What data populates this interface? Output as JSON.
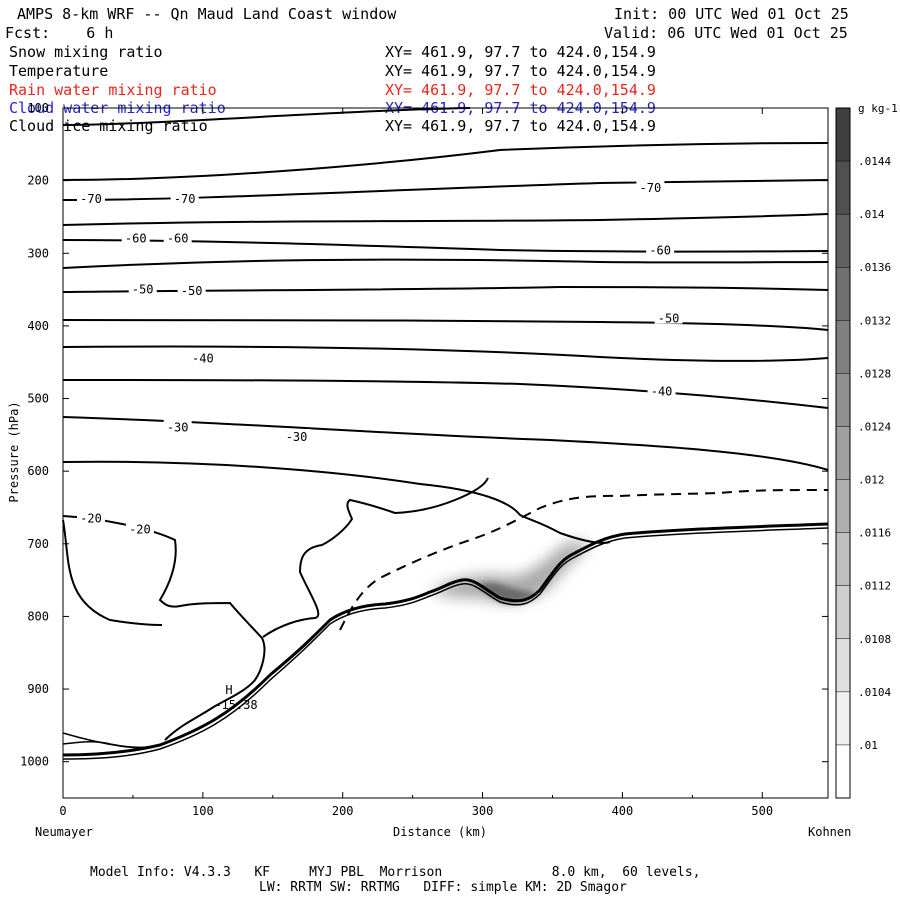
{
  "header": {
    "title": "AMPS 8-km WRF -- Qn Maud Land Coast window",
    "init": "Init: 00 UTC Wed 01 Oct 25",
    "fcst": "Fcst:    6 h",
    "valid": "Valid: 06 UTC Wed 01 Oct 25"
  },
  "fields": [
    {
      "name": "Snow mixing ratio",
      "xy": "XY= 461.9, 97.7 to 424.0,154.9",
      "color": "#000000"
    },
    {
      "name": "Temperature",
      "xy": "XY= 461.9, 97.7 to 424.0,154.9",
      "color": "#000000"
    },
    {
      "name": "Rain water mixing ratio",
      "xy": "XY= 461.9, 97.7 to 424.0,154.9",
      "color": "#e8261e"
    },
    {
      "name": "Cloud water mixing ratio",
      "xy": "XY= 461.9, 97.7 to 424.0,154.9",
      "color": "#2424c8"
    },
    {
      "name": "Cloud ice mixing ratio",
      "xy": "XY= 461.9, 97.7 to 424.0,154.9",
      "color": "#000000"
    }
  ],
  "chart_data": {
    "type": "contour-cross-section",
    "xlabel": "Distance (km)",
    "ylabel": "Pressure (hPa)",
    "xlim": [
      0,
      547
    ],
    "ylim": [
      1050,
      100
    ],
    "x_ticks": [
      0,
      100,
      200,
      300,
      400,
      500
    ],
    "y_ticks": [
      100,
      200,
      300,
      400,
      500,
      600,
      700,
      800,
      900,
      1000
    ],
    "left_endpoint": "Neumayer",
    "right_endpoint": "Kohnen",
    "contour_labels": [
      {
        "text": "-70",
        "x": 20,
        "p": 225
      },
      {
        "text": "-70",
        "x": 87,
        "p": 225
      },
      {
        "text": "-70",
        "x": 420,
        "p": 210
      },
      {
        "text": "-60",
        "x": 52,
        "p": 280
      },
      {
        "text": "-60",
        "x": 82,
        "p": 280
      },
      {
        "text": "-60",
        "x": 427,
        "p": 296
      },
      {
        "text": "-50",
        "x": 57,
        "p": 350
      },
      {
        "text": "-50",
        "x": 92,
        "p": 352
      },
      {
        "text": "-50",
        "x": 433,
        "p": 390
      },
      {
        "text": "-40",
        "x": 100,
        "p": 445
      },
      {
        "text": "-40",
        "x": 428,
        "p": 490
      },
      {
        "text": "-30",
        "x": 82,
        "p": 540
      },
      {
        "text": "-30",
        "x": 167,
        "p": 553
      },
      {
        "text": "-20",
        "x": 20,
        "p": 665
      },
      {
        "text": "-20",
        "x": 55,
        "p": 680
      }
    ],
    "high_marker": {
      "symbol": "H",
      "value": "-15.38",
      "x": 118,
      "p": 918
    },
    "colorbar": {
      "unit": "g kg-1",
      "ticks": [
        ".0144",
        ".014",
        ".0136",
        ".0132",
        ".0128",
        ".0124",
        ".012",
        ".0116",
        ".0112",
        ".0108",
        ".0104",
        ".01"
      ]
    }
  },
  "footer": {
    "line1": "Model Info: V4.3.3   KF     MYJ PBL  Morrison              8.0 km,  60 levels,",
    "line2": "LW: RRTM SW: RRTMG   DIFF: simple KM: 2D Smagor"
  }
}
